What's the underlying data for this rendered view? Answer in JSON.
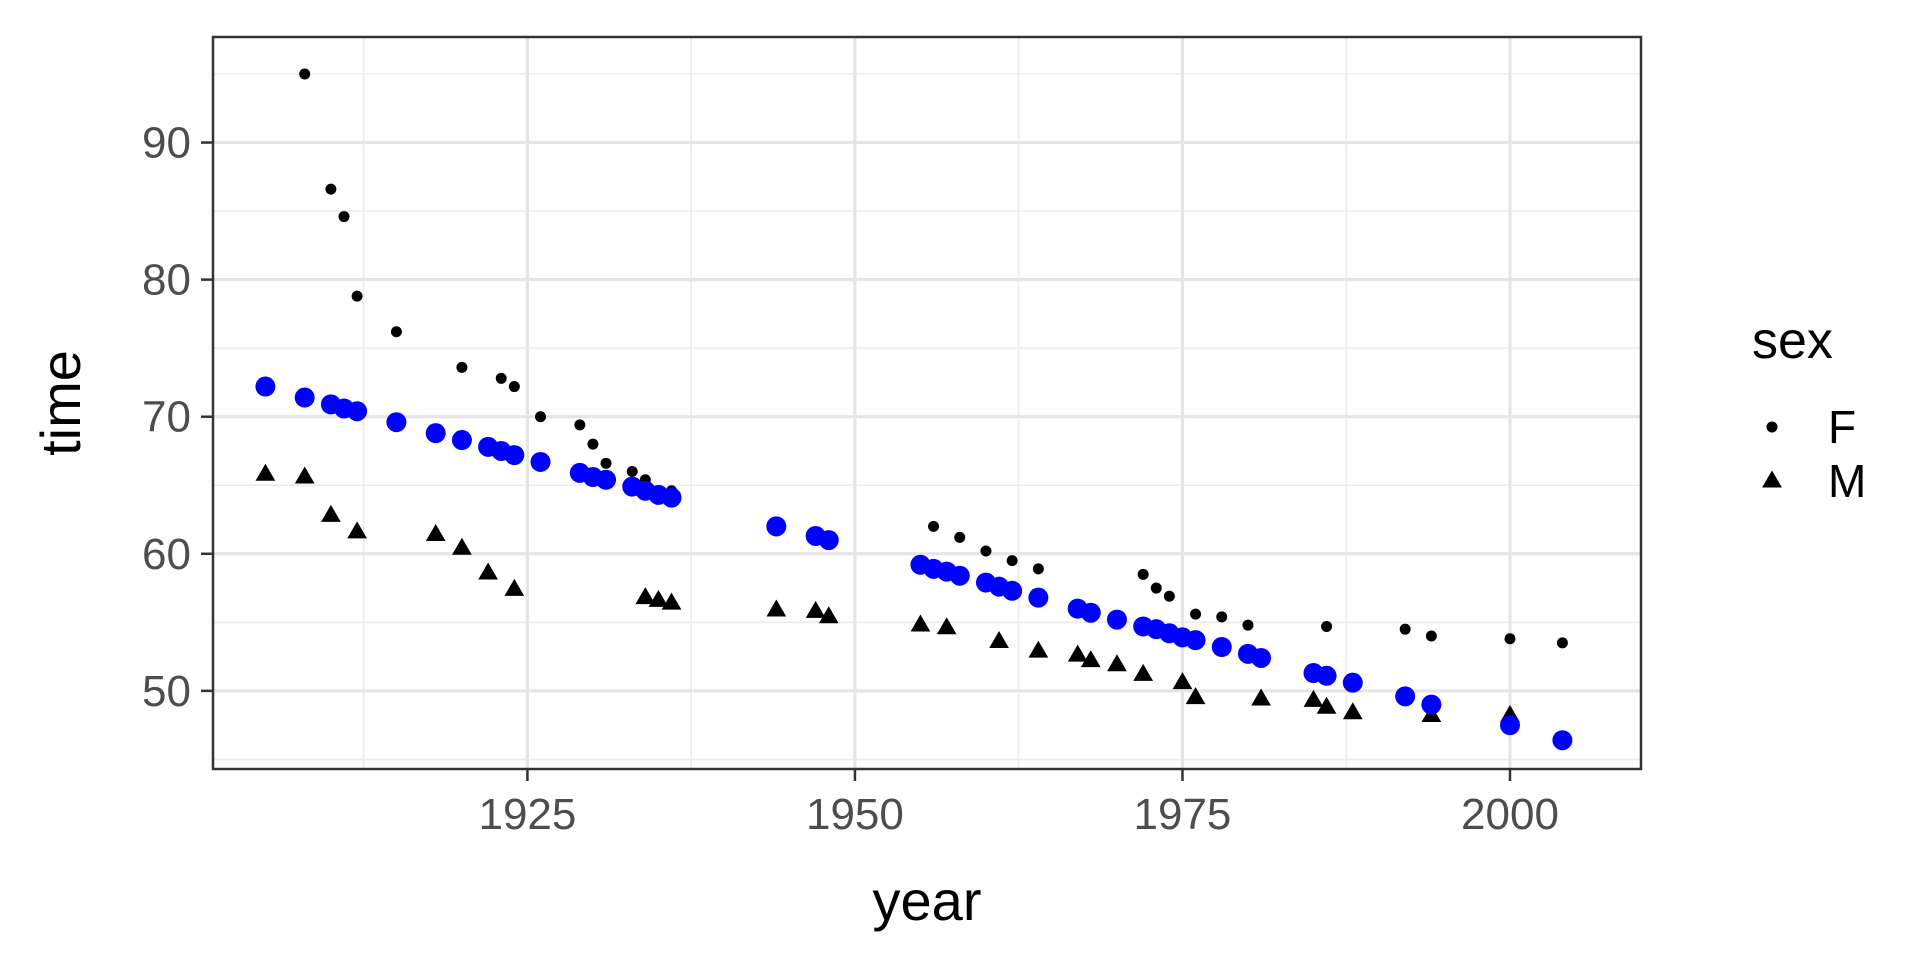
{
  "chart_data": {
    "type": "scatter",
    "xlabel": "year",
    "ylabel": "time",
    "xlim": [
      1901,
      2010
    ],
    "ylim": [
      44.3,
      97.7
    ],
    "x_ticks": [
      1925,
      1950,
      1975,
      2000
    ],
    "y_ticks": [
      50,
      60,
      70,
      80,
      90
    ],
    "grid": true,
    "legend": {
      "title": "sex",
      "position": "right",
      "entries": [
        {
          "label": "F",
          "shape": "circle"
        },
        {
          "label": "M",
          "shape": "triangle"
        }
      ]
    },
    "series": [
      {
        "name": "F",
        "shape": "circle",
        "color": "#000000",
        "x": [
          1908,
          1910,
          1911,
          1912,
          1915,
          1920,
          1923,
          1924,
          1926,
          1929,
          1930,
          1931,
          1933,
          1934,
          1936,
          1956,
          1958,
          1960,
          1962,
          1964,
          1972,
          1973,
          1974,
          1976,
          1978,
          1980,
          1986,
          1992,
          1994,
          2000,
          2004
        ],
        "y": [
          95.0,
          86.6,
          84.6,
          78.8,
          76.2,
          73.6,
          72.8,
          72.2,
          70.0,
          69.4,
          68.0,
          66.6,
          66.0,
          65.4,
          64.6,
          62.0,
          61.2,
          60.2,
          59.5,
          58.9,
          58.5,
          57.5,
          56.9,
          55.6,
          55.4,
          54.8,
          54.7,
          54.5,
          54.0,
          53.8,
          53.5
        ]
      },
      {
        "name": "M",
        "shape": "triangle",
        "color": "#000000",
        "x": [
          1905,
          1908,
          1910,
          1912,
          1918,
          1920,
          1922,
          1924,
          1934,
          1935,
          1936,
          1944,
          1947,
          1948,
          1955,
          1957,
          1961,
          1964,
          1967,
          1968,
          1970,
          1972,
          1975,
          1976,
          1981,
          1985,
          1986,
          1988,
          1994,
          2000
        ],
        "y": [
          65.8,
          65.6,
          62.8,
          61.6,
          61.4,
          60.4,
          58.6,
          57.4,
          56.8,
          56.6,
          56.4,
          55.9,
          55.8,
          55.4,
          54.8,
          54.6,
          53.6,
          52.9,
          52.6,
          52.2,
          51.9,
          51.2,
          50.6,
          49.5,
          49.4,
          49.3,
          48.8,
          48.4,
          48.2,
          48.2
        ]
      },
      {
        "name": "",
        "shape": "circle",
        "color": "#0000ff",
        "x": [
          1905,
          1908,
          1910,
          1911,
          1912,
          1915,
          1918,
          1920,
          1922,
          1923,
          1924,
          1926,
          1929,
          1930,
          1931,
          1933,
          1934,
          1935,
          1936,
          1944,
          1947,
          1948,
          1955,
          1956,
          1957,
          1958,
          1960,
          1961,
          1962,
          1964,
          1967,
          1968,
          1970,
          1972,
          1973,
          1974,
          1975,
          1976,
          1978,
          1980,
          1981,
          1985,
          1986,
          1988,
          1992,
          1994,
          2000,
          2004
        ],
        "y": [
          72.2,
          71.4,
          70.9,
          70.6,
          70.4,
          69.6,
          68.8,
          68.3,
          67.8,
          67.5,
          67.2,
          66.7,
          65.9,
          65.6,
          65.4,
          64.9,
          64.6,
          64.3,
          64.1,
          62.0,
          61.3,
          61.0,
          59.2,
          58.9,
          58.7,
          58.4,
          57.9,
          57.6,
          57.3,
          56.8,
          56.0,
          55.7,
          55.2,
          54.7,
          54.5,
          54.2,
          53.9,
          53.7,
          53.2,
          52.7,
          52.4,
          51.3,
          51.1,
          50.6,
          49.6,
          49.0,
          47.5,
          46.4
        ]
      }
    ]
  }
}
